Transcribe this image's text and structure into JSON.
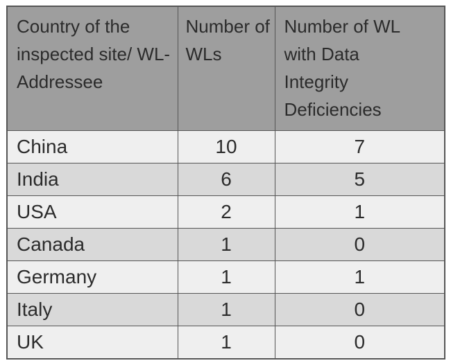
{
  "table": {
    "header": [
      "Country of the inspected site/ WL-Addressee",
      "Number of WLs",
      "Number of WL with Data Integrity Deficiencies"
    ],
    "rows": [
      [
        "China",
        10,
        7
      ],
      [
        "India",
        6,
        5
      ],
      [
        "USA",
        2,
        1
      ],
      [
        "Canada",
        1,
        0
      ],
      [
        "Germany",
        1,
        1
      ],
      [
        "Italy",
        1,
        0
      ],
      [
        "UK",
        1,
        0
      ]
    ]
  }
}
